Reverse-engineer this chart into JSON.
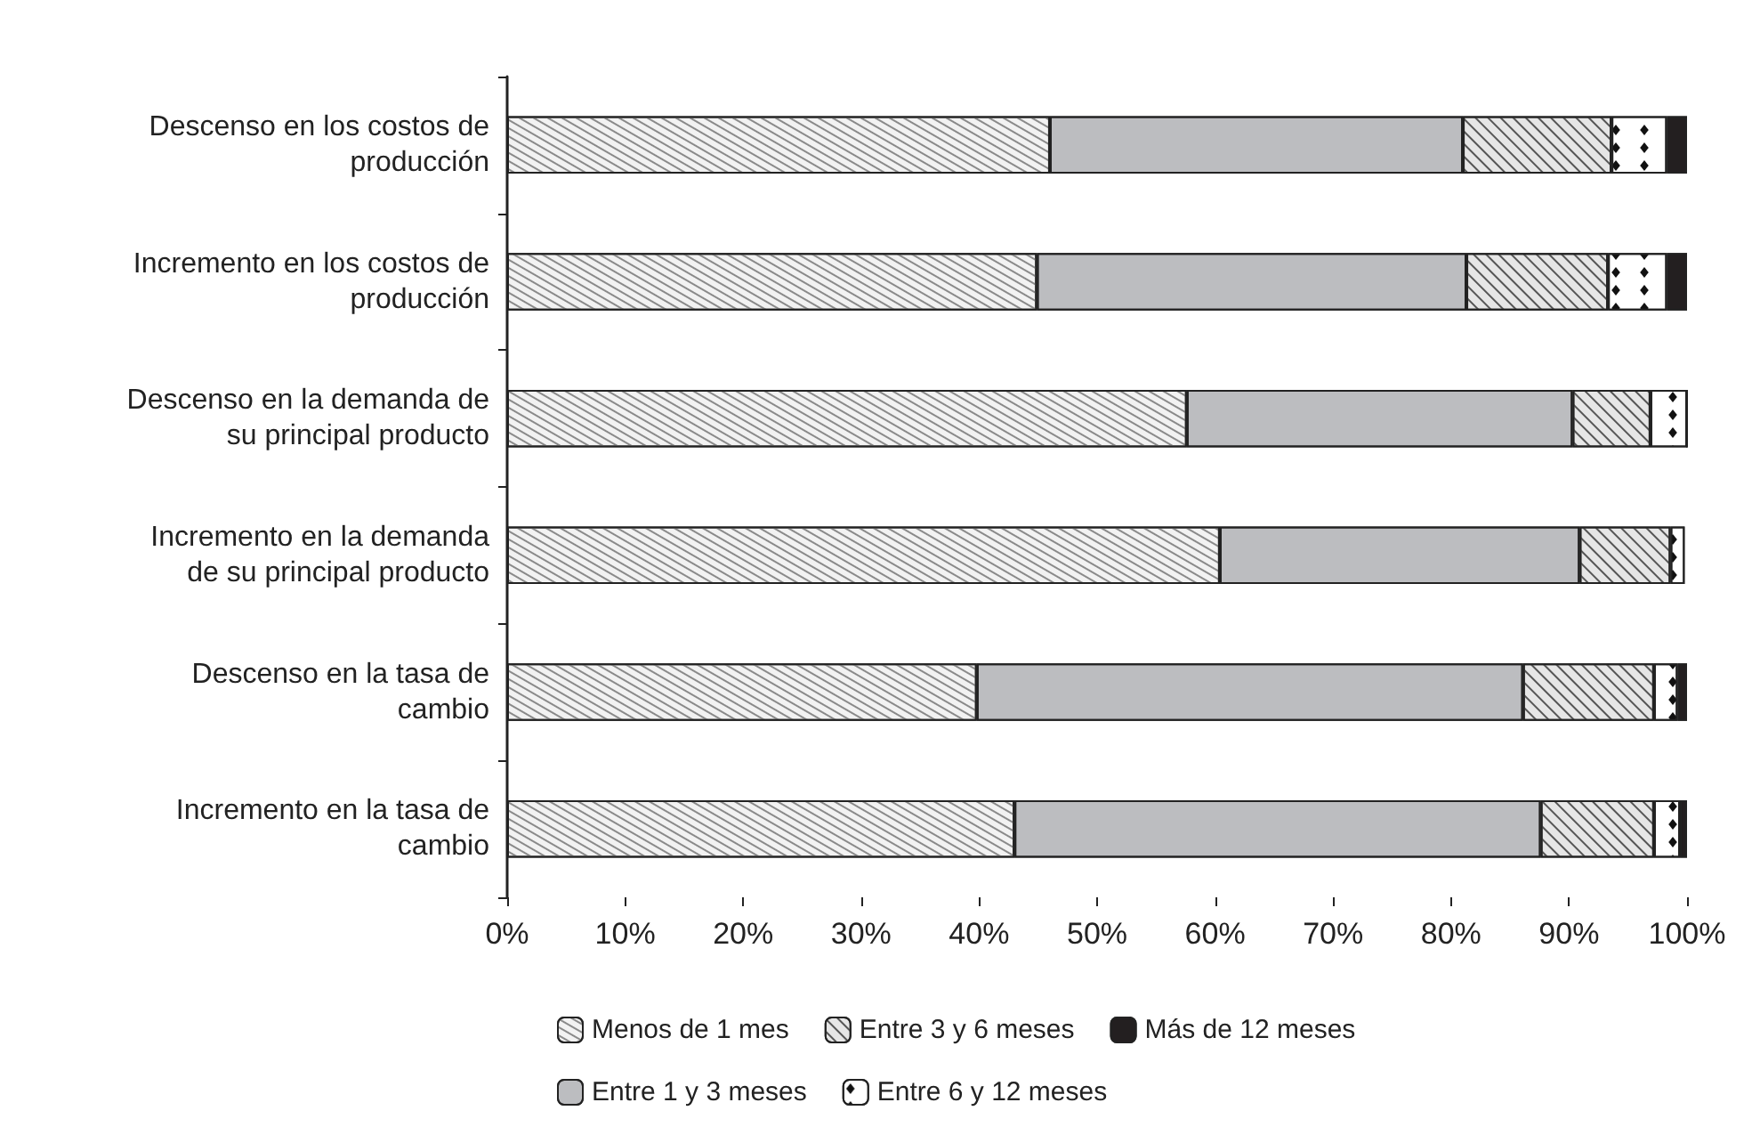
{
  "chart_data": {
    "type": "bar",
    "orientation": "horizontal",
    "stacked": true,
    "categories": [
      "Descenso en los costos de\nproducción",
      "Incremento en los costos de\nproducción",
      "Descenso en la demanda de\nsu principal producto",
      "Incremento en la demanda\nde su principal producto",
      "Descenso en la tasa de\ncambio",
      "Incremento en la tasa de\ncambio"
    ],
    "series": [
      {
        "name": "Menos de 1 mes",
        "color": "#f2f2f2",
        "values": [
          46.0,
          44.9,
          57.6,
          60.4,
          39.8,
          43.0
        ]
      },
      {
        "name": "Entre 1 y 3 meses",
        "color": "#bcbdc0",
        "values": [
          35.0,
          36.4,
          32.7,
          30.5,
          46.3,
          44.6
        ]
      },
      {
        "name": "Entre 3 y 6 meses",
        "color": "#e6e6e6",
        "values": [
          12.6,
          12.0,
          6.6,
          7.7,
          11.1,
          9.6
        ]
      },
      {
        "name": "Entre 6 y 12 meses",
        "color": "#ffffff",
        "values": [
          4.7,
          5.0,
          3.1,
          1.2,
          2.0,
          2.2
        ]
      },
      {
        "name": "Más de 12 meses",
        "color": "#231f20",
        "values": [
          1.7,
          1.7,
          0,
          null,
          0.8,
          0.6
        ]
      }
    ],
    "xlim": [
      0,
      100
    ],
    "xticks": [
      {
        "value": 0,
        "label": "0%"
      },
      {
        "value": 10,
        "label": "10%"
      },
      {
        "value": 20,
        "label": "20%"
      },
      {
        "value": 30,
        "label": "30%"
      },
      {
        "value": 40,
        "label": "40%"
      },
      {
        "value": 50,
        "label": "50%"
      },
      {
        "value": 60,
        "label": "60%"
      },
      {
        "value": 70,
        "label": "70%"
      },
      {
        "value": 80,
        "label": "80%"
      },
      {
        "value": 90,
        "label": "90%"
      },
      {
        "value": 100,
        "label": "100%"
      }
    ],
    "grid": false,
    "legend": "bottom"
  }
}
